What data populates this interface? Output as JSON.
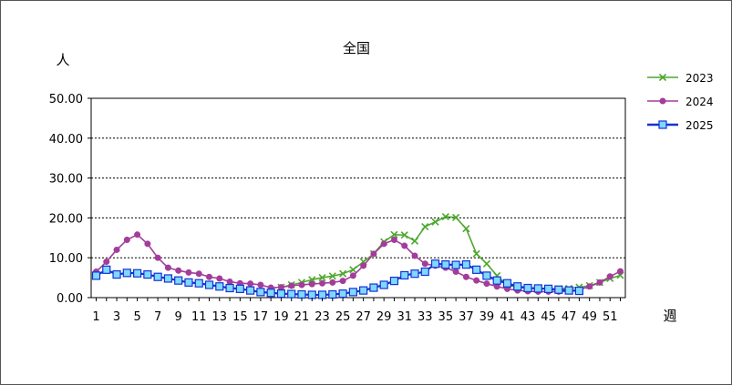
{
  "chart_data": {
    "type": "line",
    "title": "全国",
    "ylabel": "人",
    "xlabel": "週",
    "ylim": [
      0,
      50
    ],
    "yticks": [
      "0.00",
      "10.00",
      "20.00",
      "30.00",
      "40.00",
      "50.00"
    ],
    "xticks": [
      "1",
      "3",
      "5",
      "7",
      "9",
      "11",
      "13",
      "15",
      "17",
      "19",
      "21",
      "23",
      "25",
      "27",
      "29",
      "31",
      "33",
      "35",
      "37",
      "39",
      "41",
      "43",
      "45",
      "47",
      "49",
      "51"
    ],
    "grid": true,
    "legend": "right",
    "x": [
      1,
      2,
      3,
      4,
      5,
      6,
      7,
      8,
      9,
      10,
      11,
      12,
      13,
      14,
      15,
      16,
      17,
      18,
      19,
      20,
      21,
      22,
      23,
      24,
      25,
      26,
      27,
      28,
      29,
      30,
      31,
      32,
      33,
      34,
      35,
      36,
      37,
      38,
      39,
      40,
      41,
      42,
      43,
      44,
      45,
      46,
      47,
      48,
      49,
      50,
      51,
      52
    ],
    "series": [
      {
        "name": "2023",
        "color": "#4ea72e",
        "marker": "x",
        "values": [
          null,
          null,
          null,
          null,
          null,
          null,
          null,
          null,
          null,
          null,
          null,
          null,
          null,
          null,
          null,
          null,
          null,
          null,
          2.6,
          3.2,
          3.8,
          4.5,
          5.0,
          5.4,
          6.0,
          7.0,
          9.0,
          11.0,
          14.0,
          15.8,
          15.7,
          14.2,
          17.8,
          19.0,
          20.3,
          20.1,
          17.3,
          11.0,
          8.5,
          5.5,
          3.2,
          2.6,
          2.4,
          2.3,
          2.2,
          2.2,
          2.3,
          2.6,
          3.0,
          3.8,
          4.8,
          5.6
        ]
      },
      {
        "name": "2024",
        "color": "#a33d9b",
        "marker": "circle",
        "values": [
          6.5,
          9.0,
          12.0,
          14.5,
          15.8,
          13.5,
          10.0,
          7.5,
          6.8,
          6.3,
          6.0,
          5.2,
          4.8,
          4.0,
          3.6,
          3.5,
          3.2,
          2.5,
          2.6,
          3.0,
          3.2,
          3.4,
          3.6,
          3.8,
          4.2,
          5.5,
          8.0,
          11.0,
          13.5,
          14.5,
          13.0,
          10.5,
          8.5,
          8.0,
          7.5,
          6.5,
          5.2,
          4.3,
          3.5,
          2.8,
          2.2,
          1.8,
          1.6,
          1.5,
          1.5,
          1.5,
          1.6,
          2.0,
          2.8,
          3.8,
          5.3,
          6.6
        ]
      },
      {
        "name": "2025",
        "color": "#1432d2",
        "marker": "square",
        "values": [
          5.5,
          7.0,
          5.8,
          6.2,
          6.1,
          5.8,
          5.2,
          4.8,
          4.3,
          3.8,
          3.6,
          3.2,
          2.8,
          2.4,
          2.2,
          1.8,
          1.4,
          1.2,
          1.0,
          0.9,
          0.8,
          0.7,
          0.7,
          0.8,
          1.0,
          1.4,
          1.8,
          2.5,
          3.2,
          4.2,
          5.6,
          6.0,
          6.5,
          8.5,
          8.3,
          8.2,
          8.3,
          7.0,
          5.5,
          4.3,
          3.6,
          2.8,
          2.4,
          2.3,
          2.2,
          2.0,
          1.8,
          1.7,
          null,
          null,
          null,
          null
        ]
      }
    ]
  }
}
